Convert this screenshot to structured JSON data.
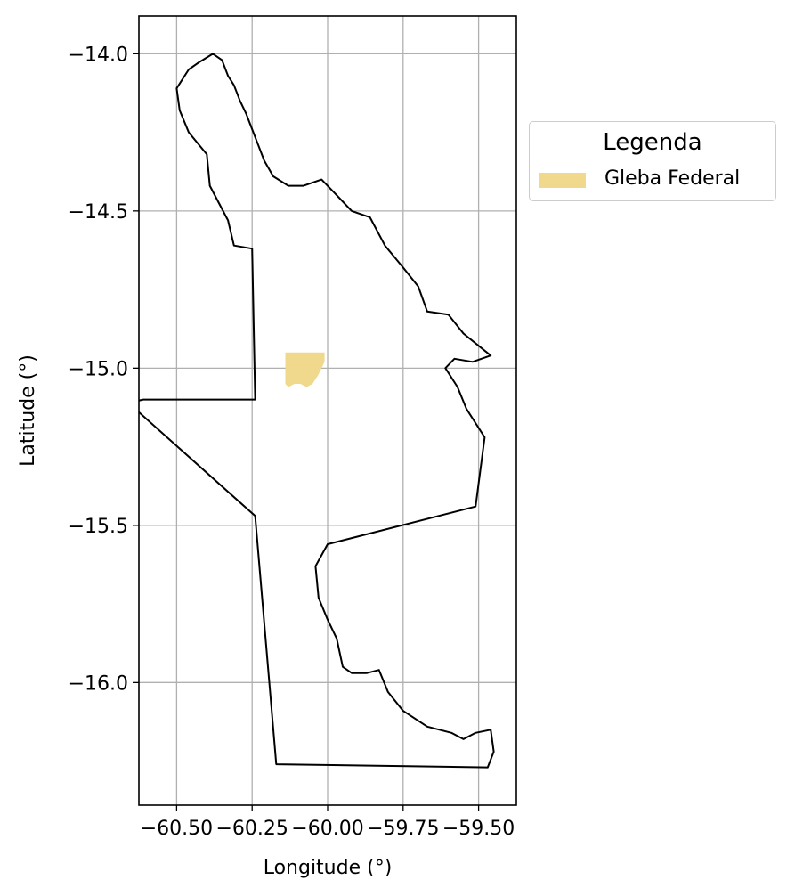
{
  "chart_data": {
    "type": "map",
    "xlabel": "Longitude (°)",
    "ylabel": "Latitude (°)",
    "xlim": [
      -60.625,
      -59.375
    ],
    "ylim": [
      -16.39,
      -13.88
    ],
    "grid": true,
    "x_ticks": [
      {
        "value": -60.5,
        "label": "−60.50"
      },
      {
        "value": -60.25,
        "label": "−60.25"
      },
      {
        "value": -60.0,
        "label": "−60.00"
      },
      {
        "value": -59.75,
        "label": "−59.75"
      },
      {
        "value": -59.5,
        "label": "−59.50"
      }
    ],
    "y_ticks": [
      {
        "value": -14.0,
        "label": "−14.0"
      },
      {
        "value": -14.5,
        "label": "−14.5"
      },
      {
        "value": -15.0,
        "label": "−15.0"
      },
      {
        "value": -15.5,
        "label": "−15.5"
      },
      {
        "value": -16.0,
        "label": "−16.0"
      }
    ],
    "boundary": {
      "color": "#000000",
      "points": [
        [
          -60.38,
          -14.0
        ],
        [
          -60.35,
          -14.02
        ],
        [
          -60.33,
          -14.07
        ],
        [
          -60.31,
          -14.1
        ],
        [
          -60.29,
          -14.15
        ],
        [
          -60.27,
          -14.19
        ],
        [
          -60.25,
          -14.24
        ],
        [
          -60.23,
          -14.29
        ],
        [
          -60.21,
          -14.34
        ],
        [
          -60.18,
          -14.39
        ],
        [
          -60.13,
          -14.42
        ],
        [
          -60.08,
          -14.42
        ],
        [
          -60.02,
          -14.4
        ],
        [
          -59.97,
          -14.45
        ],
        [
          -59.92,
          -14.5
        ],
        [
          -59.86,
          -14.52
        ],
        [
          -59.81,
          -14.61
        ],
        [
          -59.75,
          -14.68
        ],
        [
          -59.7,
          -14.74
        ],
        [
          -59.67,
          -14.82
        ],
        [
          -59.6,
          -14.83
        ],
        [
          -59.55,
          -14.89
        ],
        [
          -59.46,
          -14.96
        ],
        [
          -59.52,
          -14.98
        ],
        [
          -59.58,
          -14.97
        ],
        [
          -59.61,
          -15.0
        ],
        [
          -59.57,
          -15.06
        ],
        [
          -59.54,
          -15.13
        ],
        [
          -59.48,
          -15.22
        ],
        [
          -59.51,
          -15.44
        ],
        [
          -60.0,
          -15.56
        ],
        [
          -60.04,
          -15.63
        ],
        [
          -60.03,
          -15.73
        ],
        [
          -60.0,
          -15.8
        ],
        [
          -59.97,
          -15.86
        ],
        [
          -59.95,
          -15.95
        ],
        [
          -59.92,
          -15.97
        ],
        [
          -59.87,
          -15.97
        ],
        [
          -59.83,
          -15.96
        ],
        [
          -59.8,
          -16.03
        ],
        [
          -59.75,
          -16.09
        ],
        [
          -59.67,
          -16.14
        ],
        [
          -59.59,
          -16.16
        ],
        [
          -59.55,
          -16.18
        ],
        [
          -59.51,
          -16.16
        ],
        [
          -59.46,
          -16.15
        ],
        [
          -59.45,
          -16.22
        ],
        [
          -59.47,
          -16.27
        ],
        [
          -60.17,
          -16.26
        ],
        [
          -60.24,
          -15.47
        ],
        [
          -60.66,
          -15.11
        ],
        [
          -60.61,
          -15.1
        ],
        [
          -60.24,
          -15.1
        ],
        [
          -60.25,
          -14.62
        ],
        [
          -60.31,
          -14.61
        ],
        [
          -60.33,
          -14.53
        ],
        [
          -60.39,
          -14.42
        ],
        [
          -60.4,
          -14.32
        ],
        [
          -60.46,
          -14.25
        ],
        [
          -60.49,
          -14.18
        ],
        [
          -60.5,
          -14.11
        ],
        [
          -60.46,
          -14.05
        ],
        [
          -60.43,
          -14.03
        ],
        [
          -60.38,
          -14.0
        ]
      ]
    },
    "series": [
      {
        "name": "Gleba Federal",
        "color": "#f0d88c",
        "polygon": [
          [
            -60.14,
            -14.95
          ],
          [
            -60.01,
            -14.95
          ],
          [
            -60.01,
            -14.98
          ],
          [
            -60.03,
            -15.02
          ],
          [
            -60.05,
            -15.05
          ],
          [
            -60.07,
            -15.06
          ],
          [
            -60.09,
            -15.05
          ],
          [
            -60.11,
            -15.05
          ],
          [
            -60.13,
            -15.06
          ],
          [
            -60.14,
            -15.05
          ]
        ]
      }
    ]
  },
  "legend": {
    "title": "Legenda",
    "items": [
      {
        "label": "Gleba Federal",
        "color": "#f0d88c"
      }
    ]
  }
}
